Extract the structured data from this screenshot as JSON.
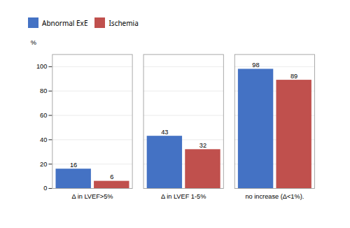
{
  "chart_data": {
    "type": "bar",
    "categories": [
      "Δ in LVEF>5%",
      "Δ in LVEF 1-5%",
      "no increase (Δ<1%)."
    ],
    "series": [
      {
        "name": "Abnormal ExE",
        "color": "#4472C4",
        "values": [
          16,
          43,
          98
        ]
      },
      {
        "name": "Ischemia",
        "color": "#C0504D",
        "values": [
          6,
          32,
          89
        ]
      }
    ],
    "ylabel": "%",
    "ylim": [
      0,
      110
    ],
    "yticks": [
      0,
      20,
      40,
      60,
      80,
      100
    ],
    "grid": true,
    "legend": "upper left",
    "data_labels": true
  }
}
